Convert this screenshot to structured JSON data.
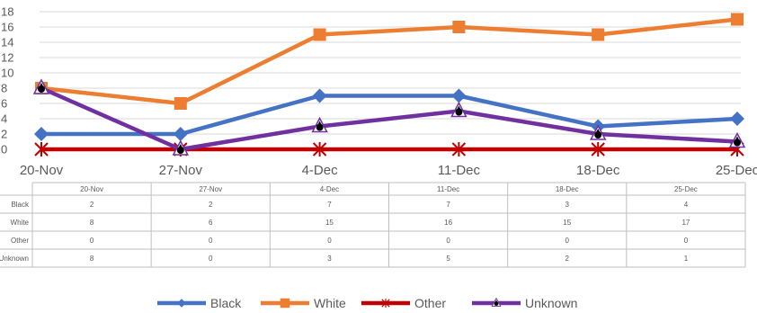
{
  "chart_data": {
    "type": "line",
    "categories": [
      "20-Nov",
      "27-Nov",
      "4-Dec",
      "11-Dec",
      "18-Dec",
      "25-Dec"
    ],
    "series": [
      {
        "name": "Black",
        "values": [
          2,
          2,
          7,
          7,
          3,
          4
        ],
        "color": "#4472C4",
        "marker": "diamond"
      },
      {
        "name": "White",
        "values": [
          8,
          6,
          15,
          16,
          15,
          17
        ],
        "color": "#ED7D31",
        "marker": "square"
      },
      {
        "name": "Other",
        "values": [
          0,
          0,
          0,
          0,
          0,
          0
        ],
        "color": "#C00000",
        "marker": "star"
      },
      {
        "name": "Unknown",
        "values": [
          8,
          0,
          3,
          5,
          2,
          1
        ],
        "color": "#7030A0",
        "marker": "triangle"
      }
    ],
    "table_row_labels": [
      "Black",
      "White",
      "Other",
      "Unknown"
    ],
    "yticks": [
      0,
      2,
      4,
      6,
      8,
      10,
      12,
      14,
      16,
      18
    ],
    "ylim": [
      0,
      18
    ],
    "grid": true,
    "legend": "bottom",
    "data_table": true,
    "title": "",
    "xlabel": "",
    "ylabel": ""
  }
}
